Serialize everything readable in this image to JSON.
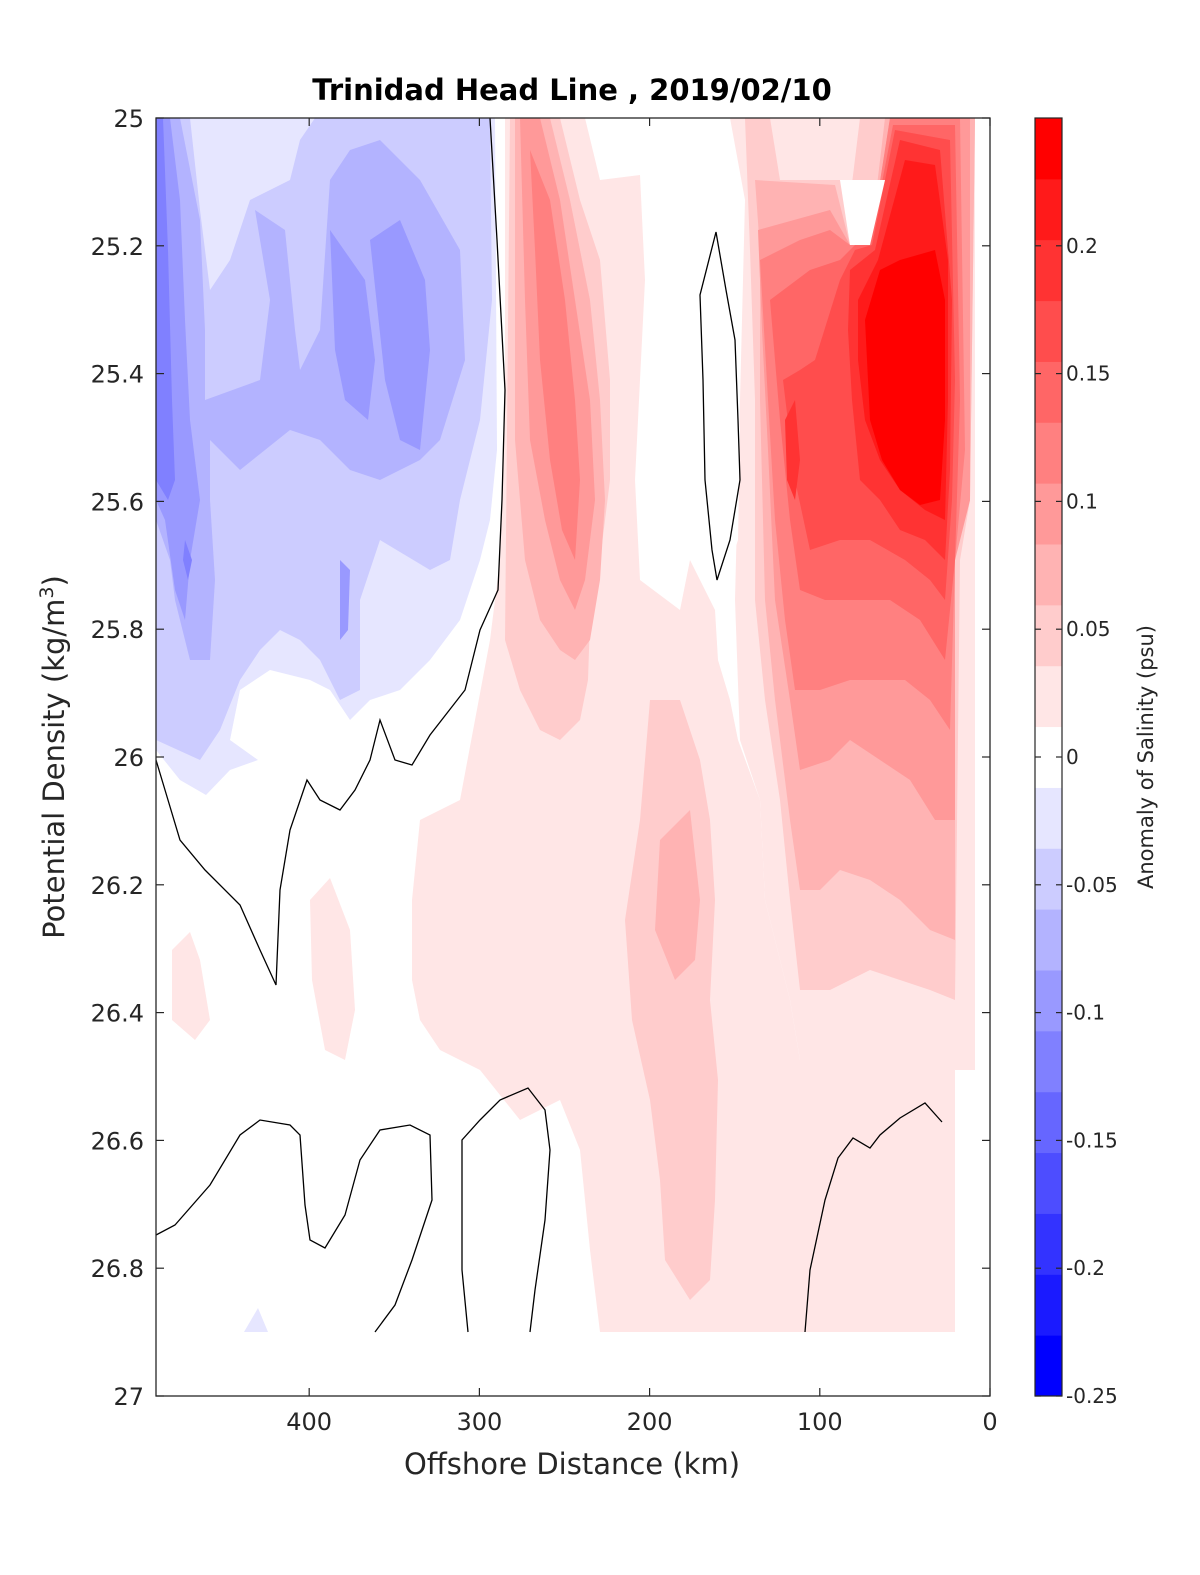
{
  "chart_data": {
    "type": "contour",
    "title": "Trinidad Head Line , 2019/02/10",
    "xlabel": "Offshore Distance (km)",
    "ylabel_main": "Potential Density (kg/m",
    "ylabel_sup": "3",
    "ylabel_close": ")",
    "xlim": [
      490,
      0
    ],
    "ylim": [
      27,
      25
    ],
    "xticks": [
      "400",
      "300",
      "200",
      "100",
      "0"
    ],
    "xtick_values": [
      400,
      300,
      200,
      100,
      0
    ],
    "yticks": [
      "25",
      "25.2",
      "25.4",
      "25.6",
      "25.8",
      "26",
      "26.2",
      "26.4",
      "26.6",
      "26.8",
      "27"
    ],
    "ytick_values": [
      25,
      25.2,
      25.4,
      25.6,
      25.8,
      26,
      26.2,
      26.4,
      26.6,
      26.8,
      27
    ],
    "colorbar": {
      "label": "Anomaly of Salinity (psu)",
      "range": [
        -0.25,
        0.25
      ],
      "ticks": [
        "0.2",
        "0.15",
        "0.1",
        "0.05",
        "0",
        "-0.05",
        "-0.1",
        "-0.15",
        "-0.2",
        "-0.25"
      ],
      "tick_values": [
        0.2,
        0.15,
        0.1,
        0.05,
        0,
        -0.05,
        -0.1,
        -0.15,
        -0.2,
        -0.25
      ],
      "levels": [
        -0.25,
        -0.225,
        -0.2,
        -0.175,
        -0.15,
        -0.125,
        -0.1,
        -0.075,
        -0.05,
        -0.025,
        0.025,
        0.05,
        0.075,
        0.1,
        0.125,
        0.15,
        0.175,
        0.2,
        0.225,
        0.25
      ],
      "colors": [
        "#0000ff",
        "#1a1aff",
        "#3333ff",
        "#4d4dff",
        "#6666ff",
        "#8080ff",
        "#9999ff",
        "#b3b3ff",
        "#ccccff",
        "#e6e6ff",
        "#ffffff",
        "#ffe6e6",
        "#ffcccc",
        "#ffb3b3",
        "#ff9999",
        "#ff8080",
        "#ff6666",
        "#ff4d4d",
        "#ff3333",
        "#ff1a1a",
        "#ff0000"
      ]
    },
    "anomaly_features": [
      {
        "name": "offshore fresh core",
        "x": 480,
        "y": 25.6,
        "value": -0.15
      },
      {
        "name": "mid-offshore fresh core",
        "x": 375,
        "y": 25.35,
        "value": -0.1
      },
      {
        "name": "salty core near 250 km",
        "x": 245,
        "y": 25.5,
        "value": 0.15
      },
      {
        "name": "nearshore salty core",
        "x": 45,
        "y": 25.4,
        "value": 0.25
      },
      {
        "name": "secondary core near 100 km",
        "x": 105,
        "y": 25.5,
        "value": 0.2
      },
      {
        "name": "deep positive tongue",
        "x": 180,
        "y": 26.3,
        "value": 0.1
      }
    ]
  }
}
